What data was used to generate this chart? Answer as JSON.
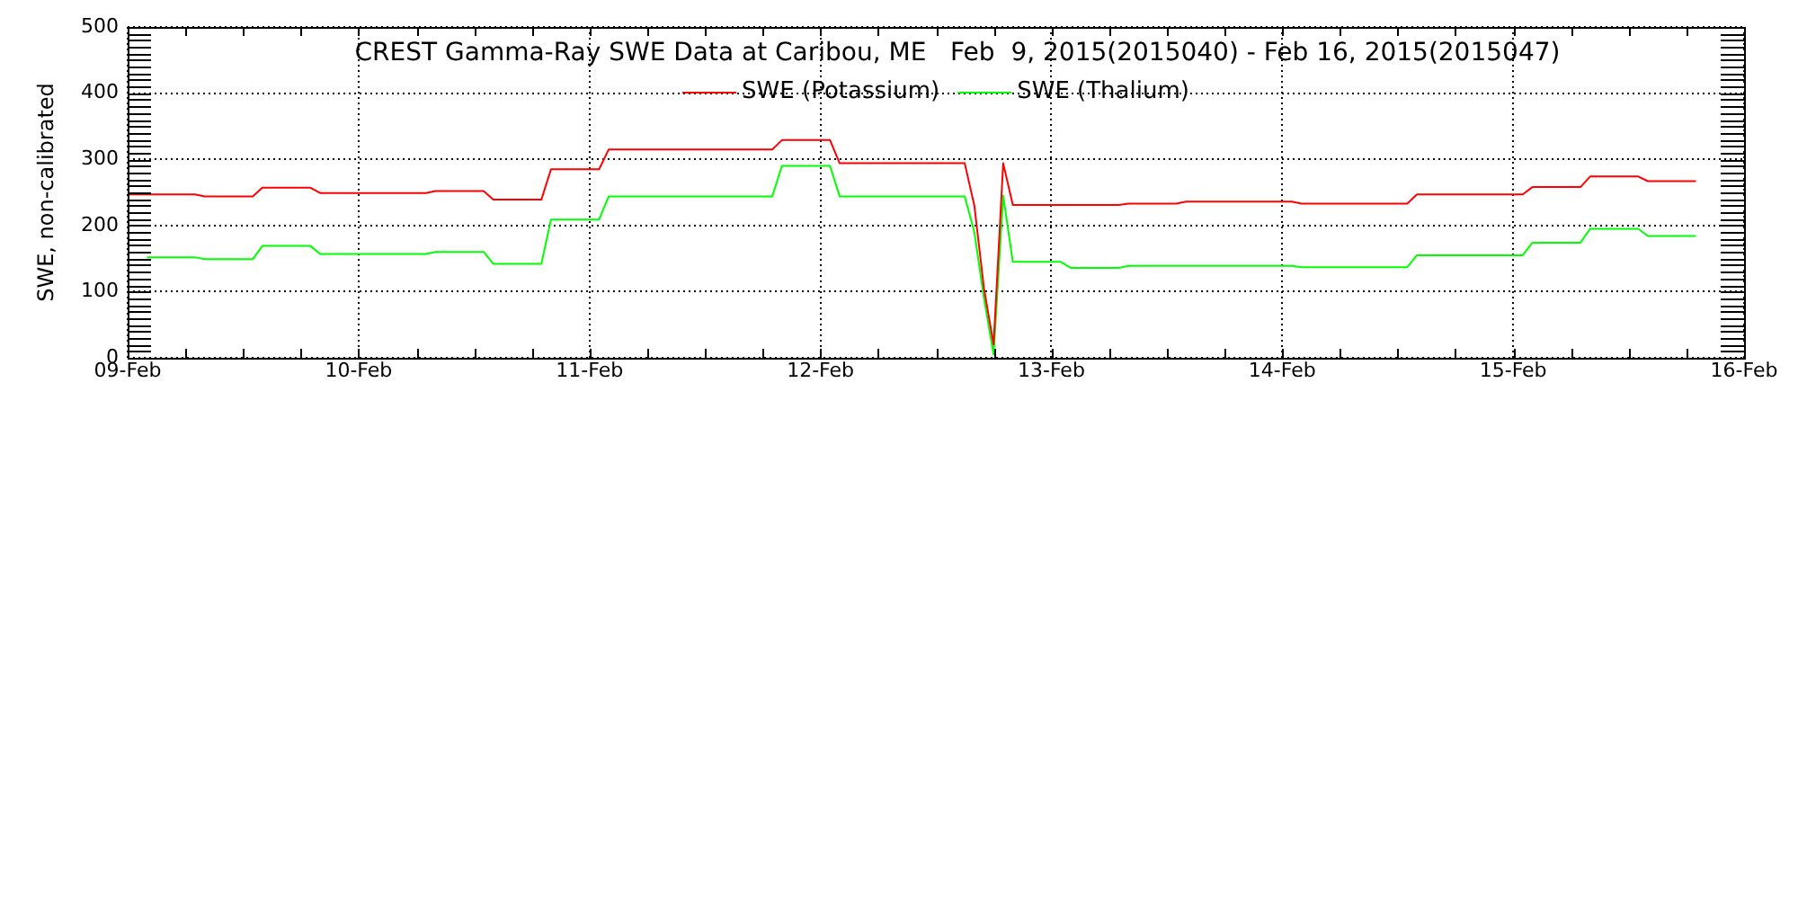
{
  "chart_data": {
    "type": "line",
    "title": "CREST Gamma-Ray SWE Data at Caribou, ME   Feb  9, 2015(2015040) - Feb 16, 2015(2015047)",
    "ylabel": "SWE, non-calibrated",
    "x": [
      "2015-02-09T00:00",
      "2015-02-09T02:00",
      "2015-02-09T07:00",
      "2015-02-09T08:00",
      "2015-02-09T13:00",
      "2015-02-09T14:00",
      "2015-02-09T19:00",
      "2015-02-09T20:00",
      "2015-02-10T07:00",
      "2015-02-10T08:00",
      "2015-02-10T13:00",
      "2015-02-10T14:00",
      "2015-02-10T19:00",
      "2015-02-10T20:00",
      "2015-02-11T01:00",
      "2015-02-11T02:00",
      "2015-02-11T19:00",
      "2015-02-11T20:00",
      "2015-02-12T01:00",
      "2015-02-12T02:00",
      "2015-02-12T15:00",
      "2015-02-12T16:00",
      "2015-02-12T17:00",
      "2015-02-12T18:00",
      "2015-02-12T19:00",
      "2015-02-12T20:00",
      "2015-02-13T01:00",
      "2015-02-13T02:00",
      "2015-02-13T07:00",
      "2015-02-13T08:00",
      "2015-02-13T13:00",
      "2015-02-13T14:00",
      "2015-02-14T01:00",
      "2015-02-14T02:00",
      "2015-02-14T13:00",
      "2015-02-14T14:00",
      "2015-02-15T01:00",
      "2015-02-15T02:00",
      "2015-02-15T07:00",
      "2015-02-15T08:00",
      "2015-02-15T13:00",
      "2015-02-15T14:00",
      "2015-02-15T19:00"
    ],
    "series": [
      {
        "name": "SWE (Potassium)",
        "color": "#ff0000",
        "values": [
          247,
          247,
          247,
          244,
          244,
          257,
          257,
          249,
          249,
          252,
          252,
          239,
          239,
          285,
          285,
          315,
          315,
          329,
          329,
          294,
          294,
          230,
          105,
          20,
          294,
          231,
          231,
          231,
          231,
          233,
          233,
          236,
          236,
          233,
          233,
          247,
          247,
          258,
          258,
          274,
          274,
          267,
          267
        ]
      },
      {
        "name": "SWE (Thalium)",
        "color": "#00ff00",
        "values": [
          null,
          152,
          152,
          149,
          149,
          169,
          169,
          157,
          157,
          160,
          160,
          142,
          142,
          209,
          209,
          244,
          244,
          290,
          290,
          244,
          244,
          190,
          90,
          5,
          245,
          145,
          145,
          136,
          136,
          139,
          139,
          139,
          139,
          137,
          137,
          155,
          155,
          174,
          174,
          195,
          195,
          184,
          184
        ]
      }
    ],
    "xlim": [
      "2015-02-09",
      "2015-02-16"
    ],
    "xticks": [
      {
        "value": "2015-02-09",
        "label": "09-Feb"
      },
      {
        "value": "2015-02-09T06:00",
        "label": null
      },
      {
        "value": "2015-02-09T12:00",
        "label": null
      },
      {
        "value": "2015-02-09T18:00",
        "label": null
      },
      {
        "value": "2015-02-10",
        "label": "10-Feb"
      },
      {
        "value": "2015-02-10T06:00",
        "label": null
      },
      {
        "value": "2015-02-10T12:00",
        "label": null
      },
      {
        "value": "2015-02-10T18:00",
        "label": null
      },
      {
        "value": "2015-02-11",
        "label": "11-Feb"
      },
      {
        "value": "2015-02-11T06:00",
        "label": null
      },
      {
        "value": "2015-02-11T12:00",
        "label": null
      },
      {
        "value": "2015-02-11T18:00",
        "label": null
      },
      {
        "value": "2015-02-12",
        "label": "12-Feb"
      },
      {
        "value": "2015-02-12T06:00",
        "label": null
      },
      {
        "value": "2015-02-12T12:00",
        "label": null
      },
      {
        "value": "2015-02-12T18:00",
        "label": null
      },
      {
        "value": "2015-02-13",
        "label": "13-Feb"
      },
      {
        "value": "2015-02-13T06:00",
        "label": null
      },
      {
        "value": "2015-02-13T12:00",
        "label": null
      },
      {
        "value": "2015-02-13T18:00",
        "label": null
      },
      {
        "value": "2015-02-14",
        "label": "14-Feb"
      },
      {
        "value": "2015-02-14T06:00",
        "label": null
      },
      {
        "value": "2015-02-14T12:00",
        "label": null
      },
      {
        "value": "2015-02-14T18:00",
        "label": null
      },
      {
        "value": "2015-02-15",
        "label": "15-Feb"
      },
      {
        "value": "2015-02-15T06:00",
        "label": null
      },
      {
        "value": "2015-02-15T12:00",
        "label": null
      },
      {
        "value": "2015-02-15T18:00",
        "label": null
      },
      {
        "value": "2015-02-16",
        "label": "16-Feb"
      }
    ],
    "ylim": [
      0,
      500
    ],
    "yticks": [
      0,
      {
        "value": 10,
        "label": null
      },
      {
        "value": 20,
        "label": null
      },
      {
        "value": 30,
        "label": null
      },
      {
        "value": 40,
        "label": null
      },
      {
        "value": 50,
        "label": null
      },
      {
        "value": 60,
        "label": null
      },
      {
        "value": 70,
        "label": null
      },
      {
        "value": 80,
        "label": null
      },
      {
        "value": 90,
        "label": null
      },
      100,
      {
        "value": 110,
        "label": null
      },
      {
        "value": 120,
        "label": null
      },
      {
        "value": 130,
        "label": null
      },
      {
        "value": 140,
        "label": null
      },
      {
        "value": 150,
        "label": null
      },
      {
        "value": 160,
        "label": null
      },
      {
        "value": 170,
        "label": null
      },
      {
        "value": 180,
        "label": null
      },
      {
        "value": 190,
        "label": null
      },
      200,
      {
        "value": 210,
        "label": null
      },
      {
        "value": 220,
        "label": null
      },
      {
        "value": 230,
        "label": null
      },
      {
        "value": 240,
        "label": null
      },
      {
        "value": 250,
        "label": null
      },
      {
        "value": 260,
        "label": null
      },
      {
        "value": 270,
        "label": null
      },
      {
        "value": 280,
        "label": null
      },
      {
        "value": 290,
        "label": null
      },
      300,
      {
        "value": 310,
        "label": null
      },
      {
        "value": 320,
        "label": null
      },
      {
        "value": 330,
        "label": null
      },
      {
        "value": 340,
        "label": null
      },
      {
        "value": 350,
        "label": null
      },
      {
        "value": 360,
        "label": null
      },
      {
        "value": 370,
        "label": null
      },
      {
        "value": 380,
        "label": null
      },
      {
        "value": 390,
        "label": null
      },
      400,
      {
        "value": 410,
        "label": null
      },
      {
        "value": 420,
        "label": null
      },
      {
        "value": 430,
        "label": null
      },
      {
        "value": 440,
        "label": null
      },
      {
        "value": 450,
        "label": null
      },
      {
        "value": 460,
        "label": null
      },
      {
        "value": 470,
        "label": null
      },
      {
        "value": 480,
        "label": null
      },
      {
        "value": 490,
        "label": null
      },
      500
    ],
    "grid": true,
    "legend": "top",
    "marker": "none",
    "line_style": "solid"
  }
}
